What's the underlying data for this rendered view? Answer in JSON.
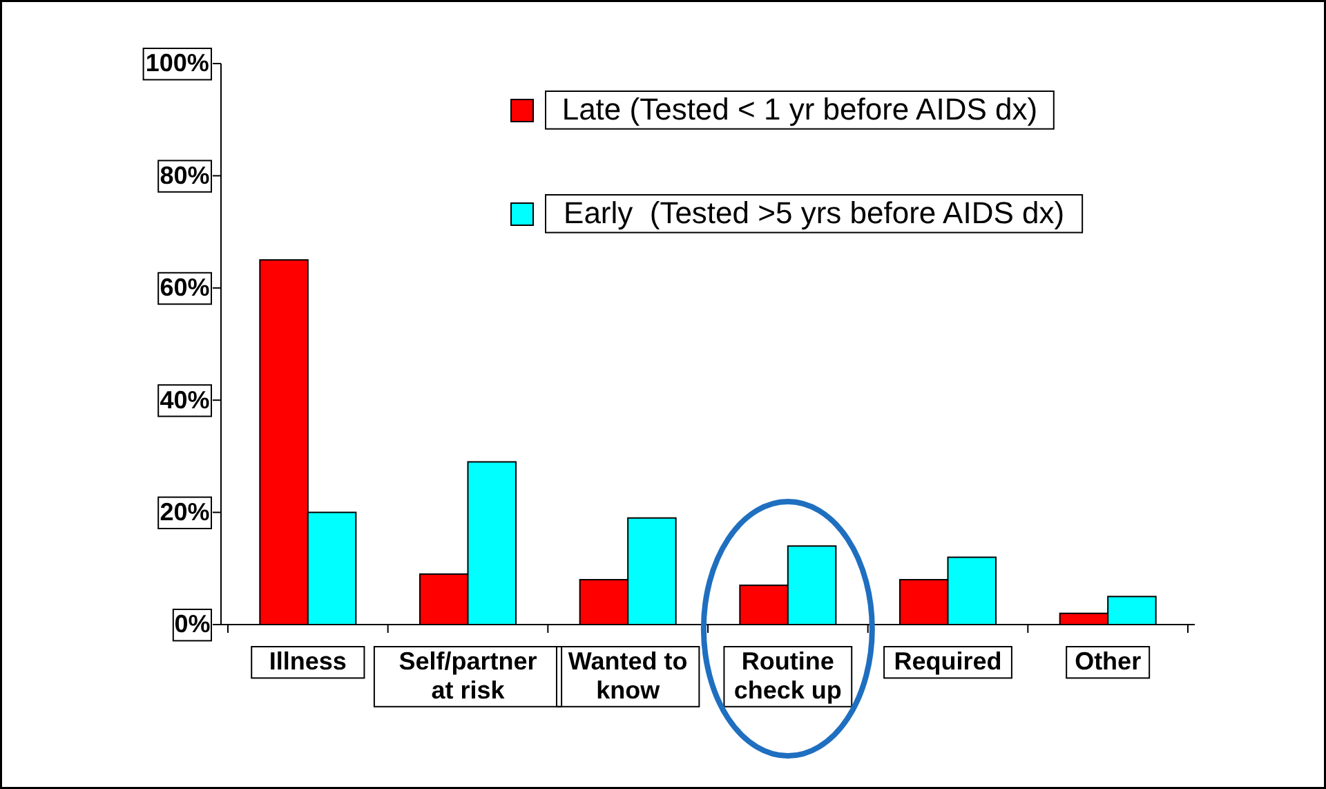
{
  "chart_data": {
    "type": "bar",
    "categories": [
      "Illness",
      "Self/partner at risk",
      "Wanted to know",
      "Routine check up",
      "Required",
      "Other"
    ],
    "series": [
      {
        "name": "Late (Tested < 1 yr before AIDS dx)",
        "color": "#ff0000",
        "values": [
          65,
          9,
          8,
          7,
          8,
          2
        ]
      },
      {
        "name": "Early  (Tested >5 yrs before AIDS dx)",
        "color": "#00ffff",
        "values": [
          20,
          29,
          19,
          14,
          12,
          5
        ]
      }
    ],
    "ylim": [
      0,
      100
    ],
    "yticks": [
      {
        "value": 0,
        "label": "0%"
      },
      {
        "value": 20,
        "label": "20%"
      },
      {
        "value": 40,
        "label": "40%"
      },
      {
        "value": 60,
        "label": "60%"
      },
      {
        "value": 80,
        "label": "80%"
      },
      {
        "value": 100,
        "label": "100%"
      }
    ],
    "grid": false,
    "legend": "top right"
  }
}
